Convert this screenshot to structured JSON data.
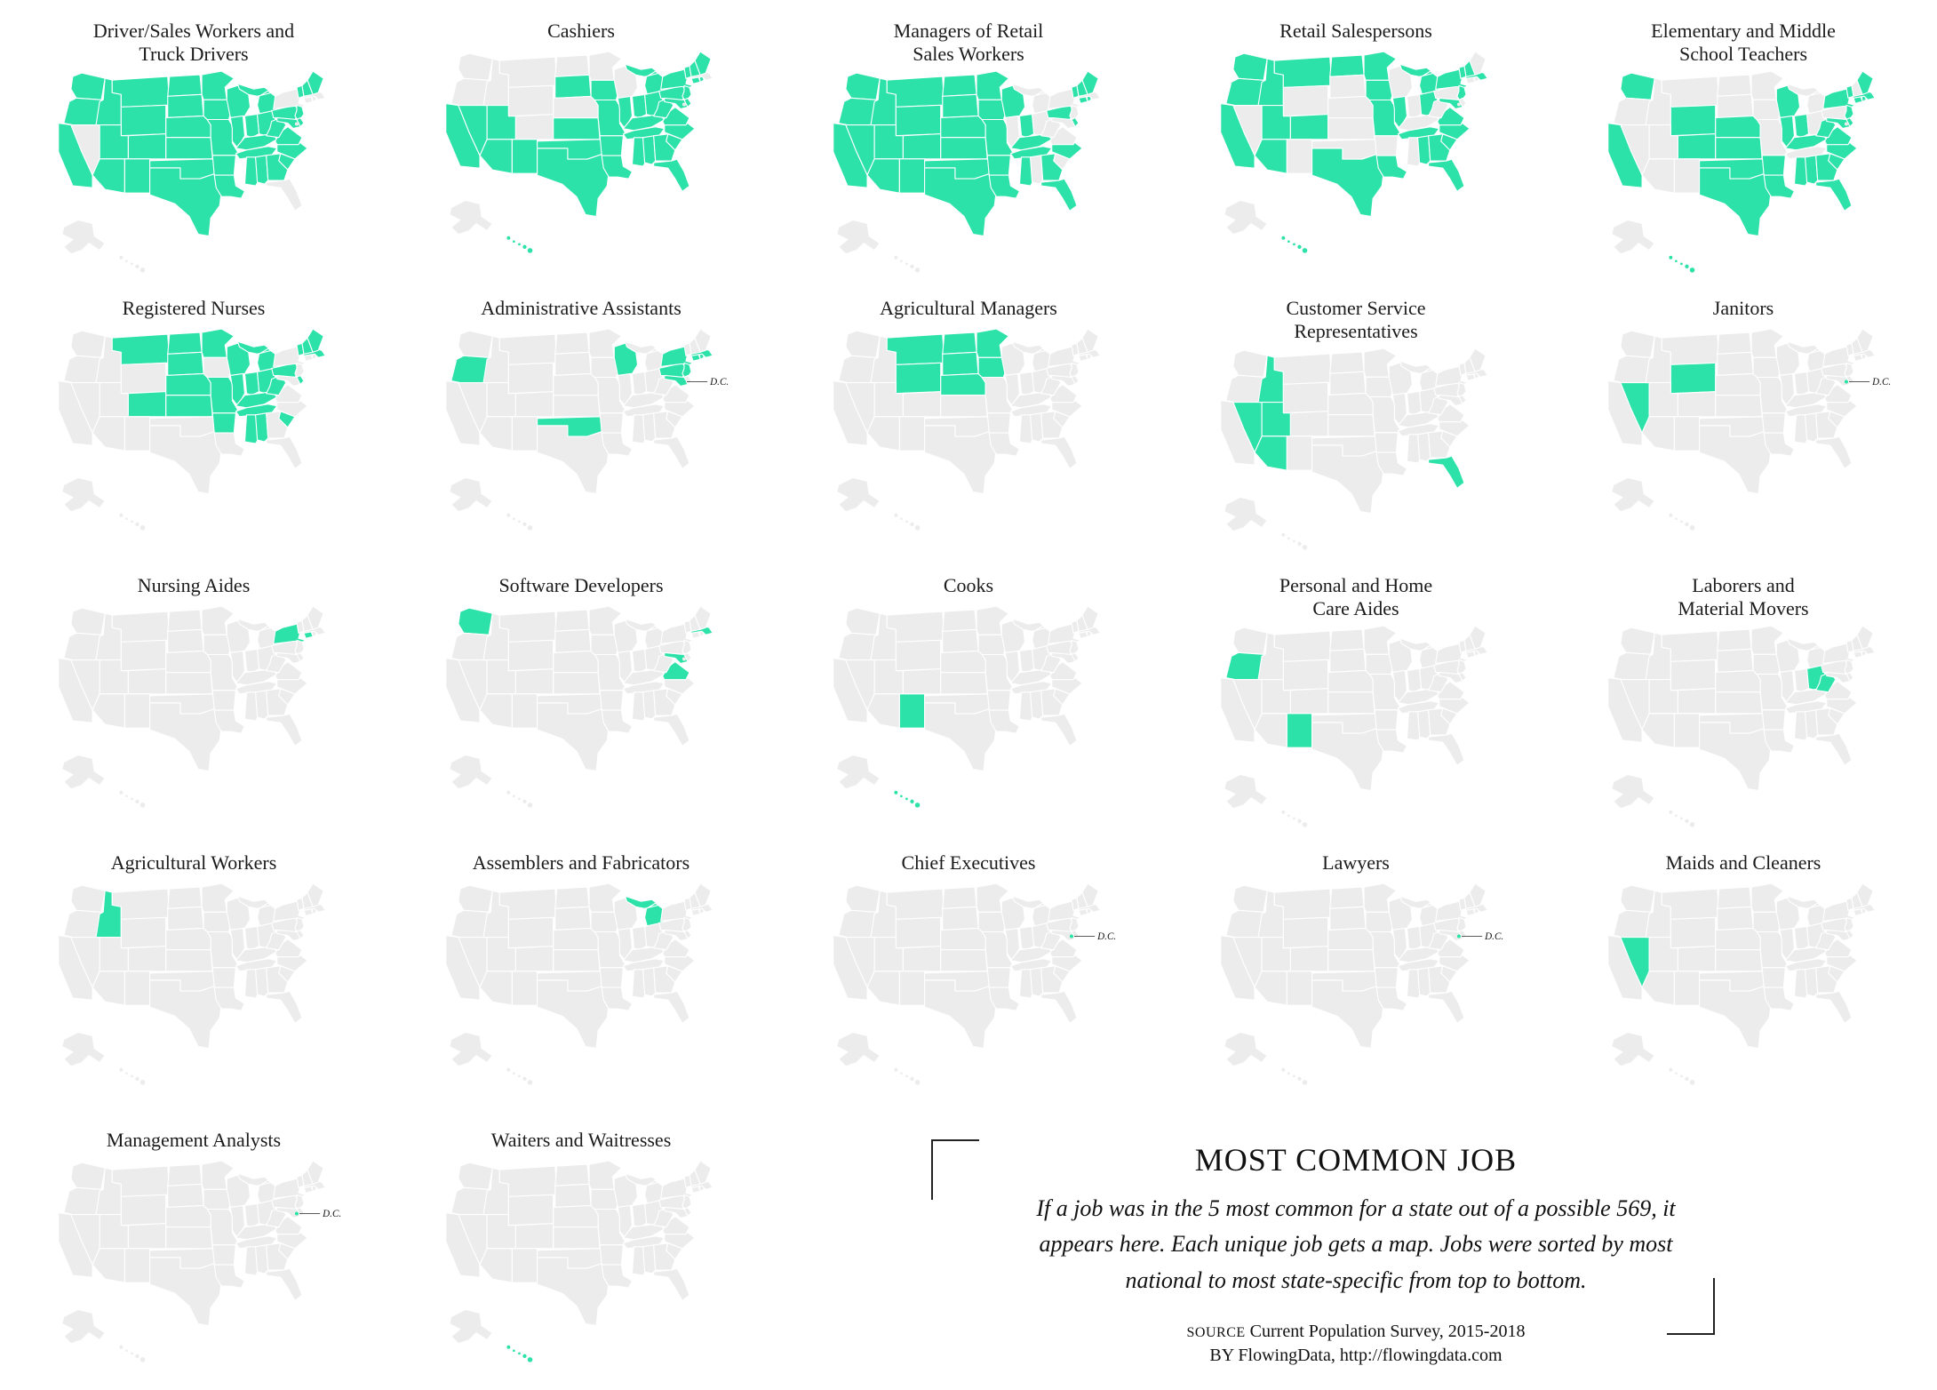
{
  "accent_color": "#2CE2A8",
  "map_gray": "#ECECEC",
  "chart_data": {
    "type": "choropleth_small_multiples",
    "title": "MOST COMMON JOB",
    "unit": "states where job is in the 5 most common",
    "dc_label": "D.C.",
    "maps": [
      {
        "title": "Driver/Sales Workers and\nTruck Drivers",
        "dc": false,
        "states": [
          "WA",
          "OR",
          "CA",
          "ID",
          "MT",
          "WY",
          "UT",
          "CO",
          "AZ",
          "NM",
          "ND",
          "SD",
          "NE",
          "KS",
          "OK",
          "TX",
          "MN",
          "IA",
          "MO",
          "AR",
          "LA",
          "WI",
          "IL",
          "MI",
          "IN",
          "OH",
          "KY",
          "TN",
          "MS",
          "AL",
          "GA",
          "SC",
          "NC",
          "VA",
          "WV",
          "PA",
          "NJ",
          "DE",
          "MD",
          "VT",
          "NH",
          "ME"
        ]
      },
      {
        "title": "Cashiers",
        "dc": false,
        "states": [
          "CA",
          "NV",
          "UT",
          "AZ",
          "NM",
          "SD",
          "KS",
          "OK",
          "TX",
          "IA",
          "MO",
          "AR",
          "LA",
          "MS",
          "AL",
          "GA",
          "FL",
          "TN",
          "KY",
          "IL",
          "IN",
          "MI",
          "OH",
          "WV",
          "VA",
          "NC",
          "SC",
          "PA",
          "NY",
          "NJ",
          "DE",
          "MD",
          "CT",
          "RI",
          "VT",
          "NH",
          "ME",
          "HI"
        ]
      },
      {
        "title": "Managers of Retail\nSales Workers",
        "dc": false,
        "states": [
          "WA",
          "OR",
          "CA",
          "ID",
          "NV",
          "MT",
          "WY",
          "UT",
          "CO",
          "AZ",
          "NM",
          "ND",
          "SD",
          "NE",
          "KS",
          "OK",
          "TX",
          "MN",
          "IA",
          "MO",
          "AR",
          "LA",
          "MS",
          "WI",
          "IN",
          "KY",
          "TN",
          "NC",
          "GA",
          "FL",
          "PA",
          "DE",
          "CT",
          "RI",
          "VT",
          "NH",
          "ME"
        ]
      },
      {
        "title": "Retail Salespersons",
        "dc": false,
        "states": [
          "WA",
          "OR",
          "CA",
          "ID",
          "MT",
          "ND",
          "MN",
          "UT",
          "CO",
          "AZ",
          "TX",
          "LA",
          "IA",
          "MO",
          "IL",
          "MI",
          "OH",
          "TN",
          "AL",
          "GA",
          "SC",
          "NC",
          "VA",
          "MD",
          "NJ",
          "NY",
          "MA",
          "VT",
          "NH",
          "FL",
          "HI"
        ]
      },
      {
        "title": "Elementary and Middle\nSchool Teachers",
        "dc": false,
        "states": [
          "WA",
          "CA",
          "WY",
          "CO",
          "NE",
          "KS",
          "OK",
          "TX",
          "AR",
          "LA",
          "MS",
          "AL",
          "GA",
          "FL",
          "SC",
          "NC",
          "VA",
          "WV",
          "KY",
          "IN",
          "IL",
          "WI",
          "NY",
          "NJ",
          "MD",
          "DE",
          "CT",
          "RI",
          "MA",
          "VT",
          "ME",
          "HI"
        ]
      },
      {
        "title": "Registered Nurses",
        "dc": false,
        "states": [
          "MT",
          "ND",
          "SD",
          "MN",
          "WI",
          "MI",
          "NE",
          "CO",
          "KS",
          "MO",
          "IL",
          "IN",
          "OH",
          "KY",
          "WV",
          "PA",
          "TN",
          "AR",
          "MS",
          "AL",
          "SC",
          "VT",
          "NH",
          "MA",
          "ME",
          "DE"
        ]
      },
      {
        "title": "Administrative Assistants",
        "dc": true,
        "states": [
          "OR",
          "WI",
          "OK",
          "NY",
          "PA",
          "NJ",
          "MA",
          "CT",
          "RI",
          "MD"
        ]
      },
      {
        "title": "Agricultural Managers",
        "dc": false,
        "states": [
          "MT",
          "ND",
          "MN",
          "WY",
          "SD",
          "NE",
          "IA"
        ]
      },
      {
        "title": "Customer Service\nRepresentatives",
        "dc": false,
        "states": [
          "ID",
          "NV",
          "UT",
          "AZ",
          "FL"
        ]
      },
      {
        "title": "Janitors",
        "dc": true,
        "states": [
          "NV",
          "WY"
        ]
      },
      {
        "title": "Nursing Aides",
        "dc": false,
        "states": [
          "NY",
          "CT"
        ]
      },
      {
        "title": "Software Developers",
        "dc": false,
        "states": [
          "WA",
          "VA",
          "MD",
          "MA"
        ]
      },
      {
        "title": "Cooks",
        "dc": false,
        "states": [
          "NM",
          "HI"
        ]
      },
      {
        "title": "Personal and Home\nCare Aides",
        "dc": false,
        "states": [
          "OR",
          "NM"
        ]
      },
      {
        "title": "Laborers and\nMaterial Movers",
        "dc": false,
        "states": [
          "OH",
          "WV"
        ]
      },
      {
        "title": "Agricultural Workers",
        "dc": false,
        "states": [
          "ID"
        ]
      },
      {
        "title": "Assemblers and Fabricators",
        "dc": false,
        "states": [
          "MI"
        ]
      },
      {
        "title": "Chief Executives",
        "dc": true,
        "states": []
      },
      {
        "title": "Lawyers",
        "dc": true,
        "states": []
      },
      {
        "title": "Maids and Cleaners",
        "dc": false,
        "states": [
          "NV"
        ]
      },
      {
        "title": "Management Analysts",
        "dc": true,
        "states": []
      },
      {
        "title": "Waiters and Waitresses",
        "dc": false,
        "states": [
          "HI"
        ]
      }
    ]
  },
  "caption": {
    "title": "MOST COMMON JOB",
    "body": "If a job was in the 5 most common for a state out of a possible 569, it appears here. Each unique job gets a map. Jobs were sorted by most national to most state-specific from top to bottom.",
    "source_label": "SOURCE",
    "source_text": "Current Population Survey, 2015-2018",
    "by_label": "BY",
    "by_text": "FlowingData, http://flowingdata.com"
  }
}
